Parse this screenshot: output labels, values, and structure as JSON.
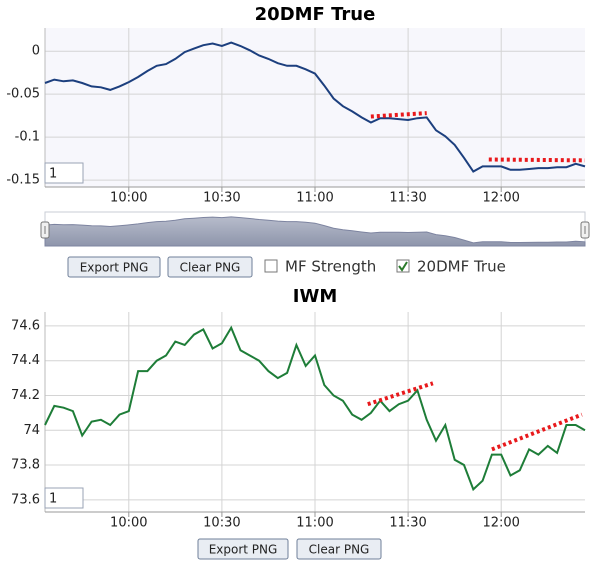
{
  "chart_data": [
    {
      "type": "line",
      "title": "20DMF True",
      "x": [
        573,
        576,
        579,
        582,
        585,
        588,
        591,
        594,
        597,
        600,
        603,
        606,
        609,
        612,
        615,
        618,
        621,
        624,
        627,
        630,
        633,
        636,
        639,
        642,
        645,
        648,
        651,
        654,
        657,
        660,
        663,
        666,
        669,
        672,
        675,
        678,
        681,
        684,
        687,
        690,
        693,
        696,
        699,
        702,
        705,
        708,
        711,
        714,
        717,
        720,
        723,
        726,
        729,
        732,
        735,
        738,
        741,
        744,
        747
      ],
      "series": [
        {
          "name": "20DMF True",
          "color": "#1c3f7e",
          "values": [
            -0.037,
            -0.033,
            -0.035,
            -0.034,
            -0.037,
            -0.041,
            -0.042,
            -0.045,
            -0.041,
            -0.036,
            -0.03,
            -0.023,
            -0.017,
            -0.015,
            -0.009,
            -0.001,
            0.003,
            0.007,
            0.009,
            0.006,
            0.01,
            0.006,
            0.001,
            -0.005,
            -0.009,
            -0.014,
            -0.017,
            -0.017,
            -0.021,
            -0.026,
            -0.04,
            -0.055,
            -0.064,
            -0.07,
            -0.077,
            -0.083,
            -0.078,
            -0.078,
            -0.079,
            -0.08,
            -0.078,
            -0.077,
            -0.092,
            -0.099,
            -0.109,
            -0.124,
            -0.14,
            -0.134,
            -0.134,
            -0.134,
            -0.138,
            -0.138,
            -0.137,
            -0.136,
            -0.136,
            -0.135,
            -0.135,
            -0.131,
            -0.134
          ]
        }
      ],
      "xlim": [
        573,
        747
      ],
      "xticks": [
        {
          "value": 600,
          "label": "10:00"
        },
        {
          "value": 630,
          "label": "10:30"
        },
        {
          "value": 660,
          "label": "11:00"
        },
        {
          "value": 690,
          "label": "11:30"
        },
        {
          "value": 720,
          "label": "12:00"
        }
      ],
      "ylim": [
        -0.158,
        0.027
      ],
      "yticks": [
        0,
        -0.05,
        -0.1,
        -0.15
      ],
      "grid": true,
      "annotation_color": "#e8191c",
      "annotations": [
        {
          "x": [
            678,
            696
          ],
          "y": [
            -0.076,
            -0.072
          ]
        },
        {
          "x": [
            716,
            747
          ],
          "y": [
            -0.126,
            -0.127
          ]
        }
      ]
    },
    {
      "type": "line",
      "title": "IWM",
      "x": [
        573,
        576,
        579,
        582,
        585,
        588,
        591,
        594,
        597,
        600,
        603,
        606,
        609,
        612,
        615,
        618,
        621,
        624,
        627,
        630,
        633,
        636,
        639,
        642,
        645,
        648,
        651,
        654,
        657,
        660,
        663,
        666,
        669,
        672,
        675,
        678,
        681,
        684,
        687,
        690,
        693,
        696,
        699,
        702,
        705,
        708,
        711,
        714,
        717,
        720,
        723,
        726,
        729,
        732,
        735,
        738,
        741,
        744,
        747
      ],
      "series": [
        {
          "name": "IWM",
          "color": "#1e7d38",
          "values": [
            74.03,
            74.14,
            74.13,
            74.11,
            73.97,
            74.05,
            74.06,
            74.03,
            74.09,
            74.11,
            74.34,
            74.34,
            74.4,
            74.43,
            74.51,
            74.49,
            74.55,
            74.58,
            74.47,
            74.5,
            74.59,
            74.46,
            74.43,
            74.4,
            74.34,
            74.3,
            74.33,
            74.49,
            74.37,
            74.43,
            74.26,
            74.2,
            74.17,
            74.09,
            74.06,
            74.1,
            74.17,
            74.11,
            74.15,
            74.17,
            74.23,
            74.06,
            73.94,
            74.03,
            73.83,
            73.8,
            73.66,
            73.71,
            73.86,
            73.86,
            73.74,
            73.77,
            73.89,
            73.86,
            73.91,
            73.87,
            74.03,
            74.03,
            74.0
          ]
        }
      ],
      "xlim": [
        573,
        747
      ],
      "xticks": [
        {
          "value": 600,
          "label": "10:00"
        },
        {
          "value": 630,
          "label": "10:30"
        },
        {
          "value": 660,
          "label": "11:00"
        },
        {
          "value": 690,
          "label": "11:30"
        },
        {
          "value": 720,
          "label": "12:00"
        }
      ],
      "ylim": [
        73.53,
        74.68
      ],
      "yticks": [
        74.6,
        74.4,
        74.2,
        74,
        73.8,
        73.6
      ],
      "grid": true,
      "annotation_color": "#e8191c",
      "annotations": [
        {
          "x": [
            677,
            698
          ],
          "y": [
            74.15,
            74.27
          ]
        },
        {
          "x": [
            717,
            746
          ],
          "y": [
            73.89,
            74.09
          ]
        }
      ]
    }
  ],
  "ui": {
    "zoom_inputs": [
      "1",
      "1"
    ],
    "top_buttons": [
      "Export PNG",
      "Clear PNG"
    ],
    "checkboxes": [
      {
        "label": "MF Strength",
        "checked": false
      },
      {
        "label": "20DMF True",
        "checked": true
      }
    ],
    "bottom_buttons": [
      "Export PNG",
      "Clear PNG"
    ]
  }
}
